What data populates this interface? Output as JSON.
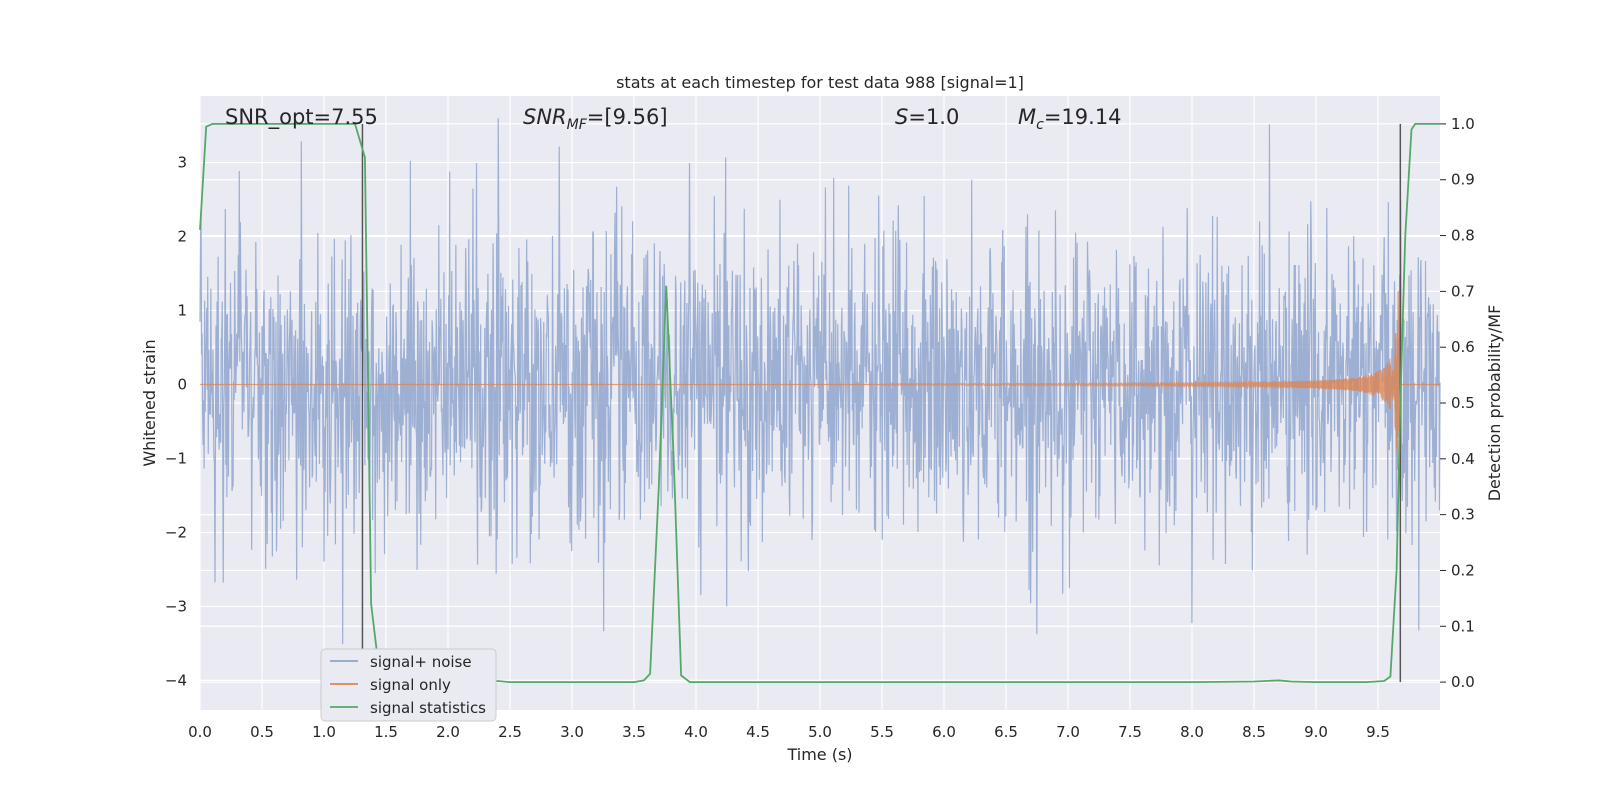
{
  "chart_data": {
    "type": "line",
    "title": "stats at each timestep for test data 988 [signal=1]",
    "xlabel": "Time (s)",
    "ylabel": "Whitened strain",
    "y2label": "Detection probability/MF",
    "xlim": [
      0.0,
      10.0
    ],
    "ylim": [
      -4.4,
      3.9
    ],
    "y2lim": [
      -0.05,
      1.05
    ],
    "x_ticks": [
      "0.0",
      "0.5",
      "1.0",
      "1.5",
      "2.0",
      "2.5",
      "3.0",
      "3.5",
      "4.0",
      "4.5",
      "5.0",
      "5.5",
      "6.0",
      "6.5",
      "7.0",
      "7.5",
      "8.0",
      "8.5",
      "9.0",
      "9.5"
    ],
    "y_ticks": [
      "3",
      "2",
      "1",
      "0",
      "−1",
      "−2",
      "−3",
      "−4"
    ],
    "y2_ticks": [
      "1.0",
      "0.9",
      "0.8",
      "0.7",
      "0.6",
      "0.5",
      "0.4",
      "0.3",
      "0.2",
      "0.1",
      "0.0"
    ],
    "grid": true,
    "legend_position": "lower-left",
    "annotations": {
      "snr_opt": "SNR_opt=7.55",
      "snr_mf_base": "SNR",
      "snr_mf_sub": "MF",
      "snr_mf_rest": "=[9.56]",
      "s_var": "S",
      "s_rest": "=1.0",
      "mc_var": "M",
      "mc_sub": "c",
      "mc_rest": "=19.14"
    },
    "series": [
      {
        "name": "signal+ noise",
        "color": "#8fa4cc",
        "noise_envelope": [
          -4.05,
          3.6
        ]
      },
      {
        "name": "signal only",
        "color": "#dd8452",
        "chirp_start": 5.5,
        "chirp_merger": 9.68,
        "peak_amplitude": 1.3
      },
      {
        "name": "signal statistics",
        "color": "#55a868",
        "x": [
          0.0,
          0.05,
          0.1,
          0.2,
          0.4,
          0.6,
          0.8,
          1.0,
          1.2,
          1.25,
          1.33,
          1.38,
          1.45,
          1.5,
          1.7,
          2.0,
          2.3,
          2.4,
          2.5,
          2.8,
          3.0,
          3.3,
          3.5,
          3.58,
          3.63,
          3.7,
          3.76,
          3.82,
          3.88,
          3.95,
          4.0,
          5.0,
          6.0,
          7.0,
          8.0,
          8.5,
          8.7,
          8.8,
          9.0,
          9.4,
          9.55,
          9.6,
          9.65,
          9.68,
          9.72,
          9.77,
          9.8,
          9.85,
          10.0
        ],
        "y": [
          0.81,
          0.995,
          1.0,
          1.0,
          1.0,
          1.0,
          1.0,
          1.0,
          1.0,
          1.0,
          0.94,
          0.14,
          0.01,
          0.0,
          0.0,
          0.0,
          0.0,
          0.002,
          0.0,
          0.0,
          0.0,
          0.0,
          0.0,
          0.003,
          0.015,
          0.35,
          0.71,
          0.4,
          0.012,
          0.0,
          0.0,
          0.0,
          0.0,
          0.0,
          0.0,
          0.001,
          0.003,
          0.001,
          0.0,
          0.0,
          0.002,
          0.01,
          0.2,
          0.5,
          0.8,
          0.99,
          1.0,
          1.0,
          1.0
        ]
      }
    ],
    "vertical_markers": [
      1.31,
      9.68
    ]
  }
}
